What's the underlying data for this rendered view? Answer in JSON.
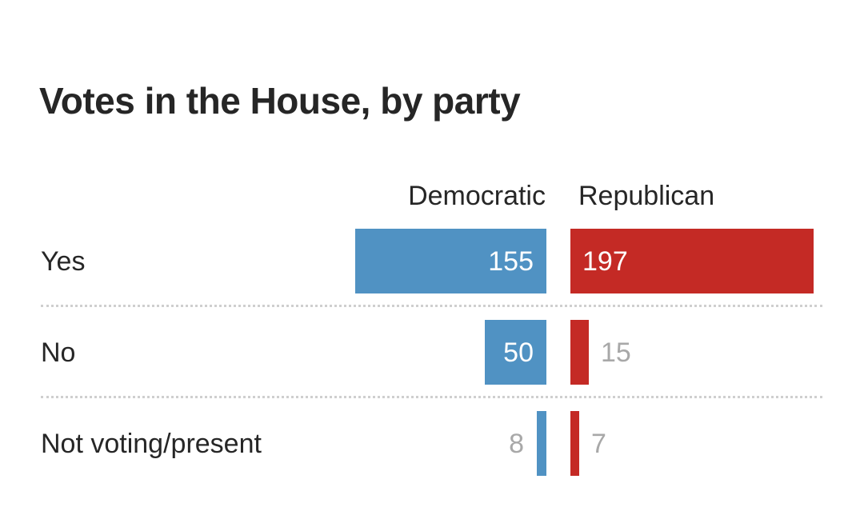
{
  "chart_data": {
    "type": "bar",
    "orientation": "horizontal-diverging",
    "title": "Votes in the House, by party",
    "categories": [
      "Yes",
      "No",
      "Not voting/present"
    ],
    "series": [
      {
        "name": "Democratic",
        "values": [
          155,
          50,
          8
        ]
      },
      {
        "name": "Republican",
        "values": [
          197,
          15,
          7
        ]
      }
    ]
  },
  "colors": {
    "democratic": "#5092c3",
    "republican": "#c42a25",
    "outside_label": "#a8a8a8",
    "divider": "#cfcfcf"
  }
}
